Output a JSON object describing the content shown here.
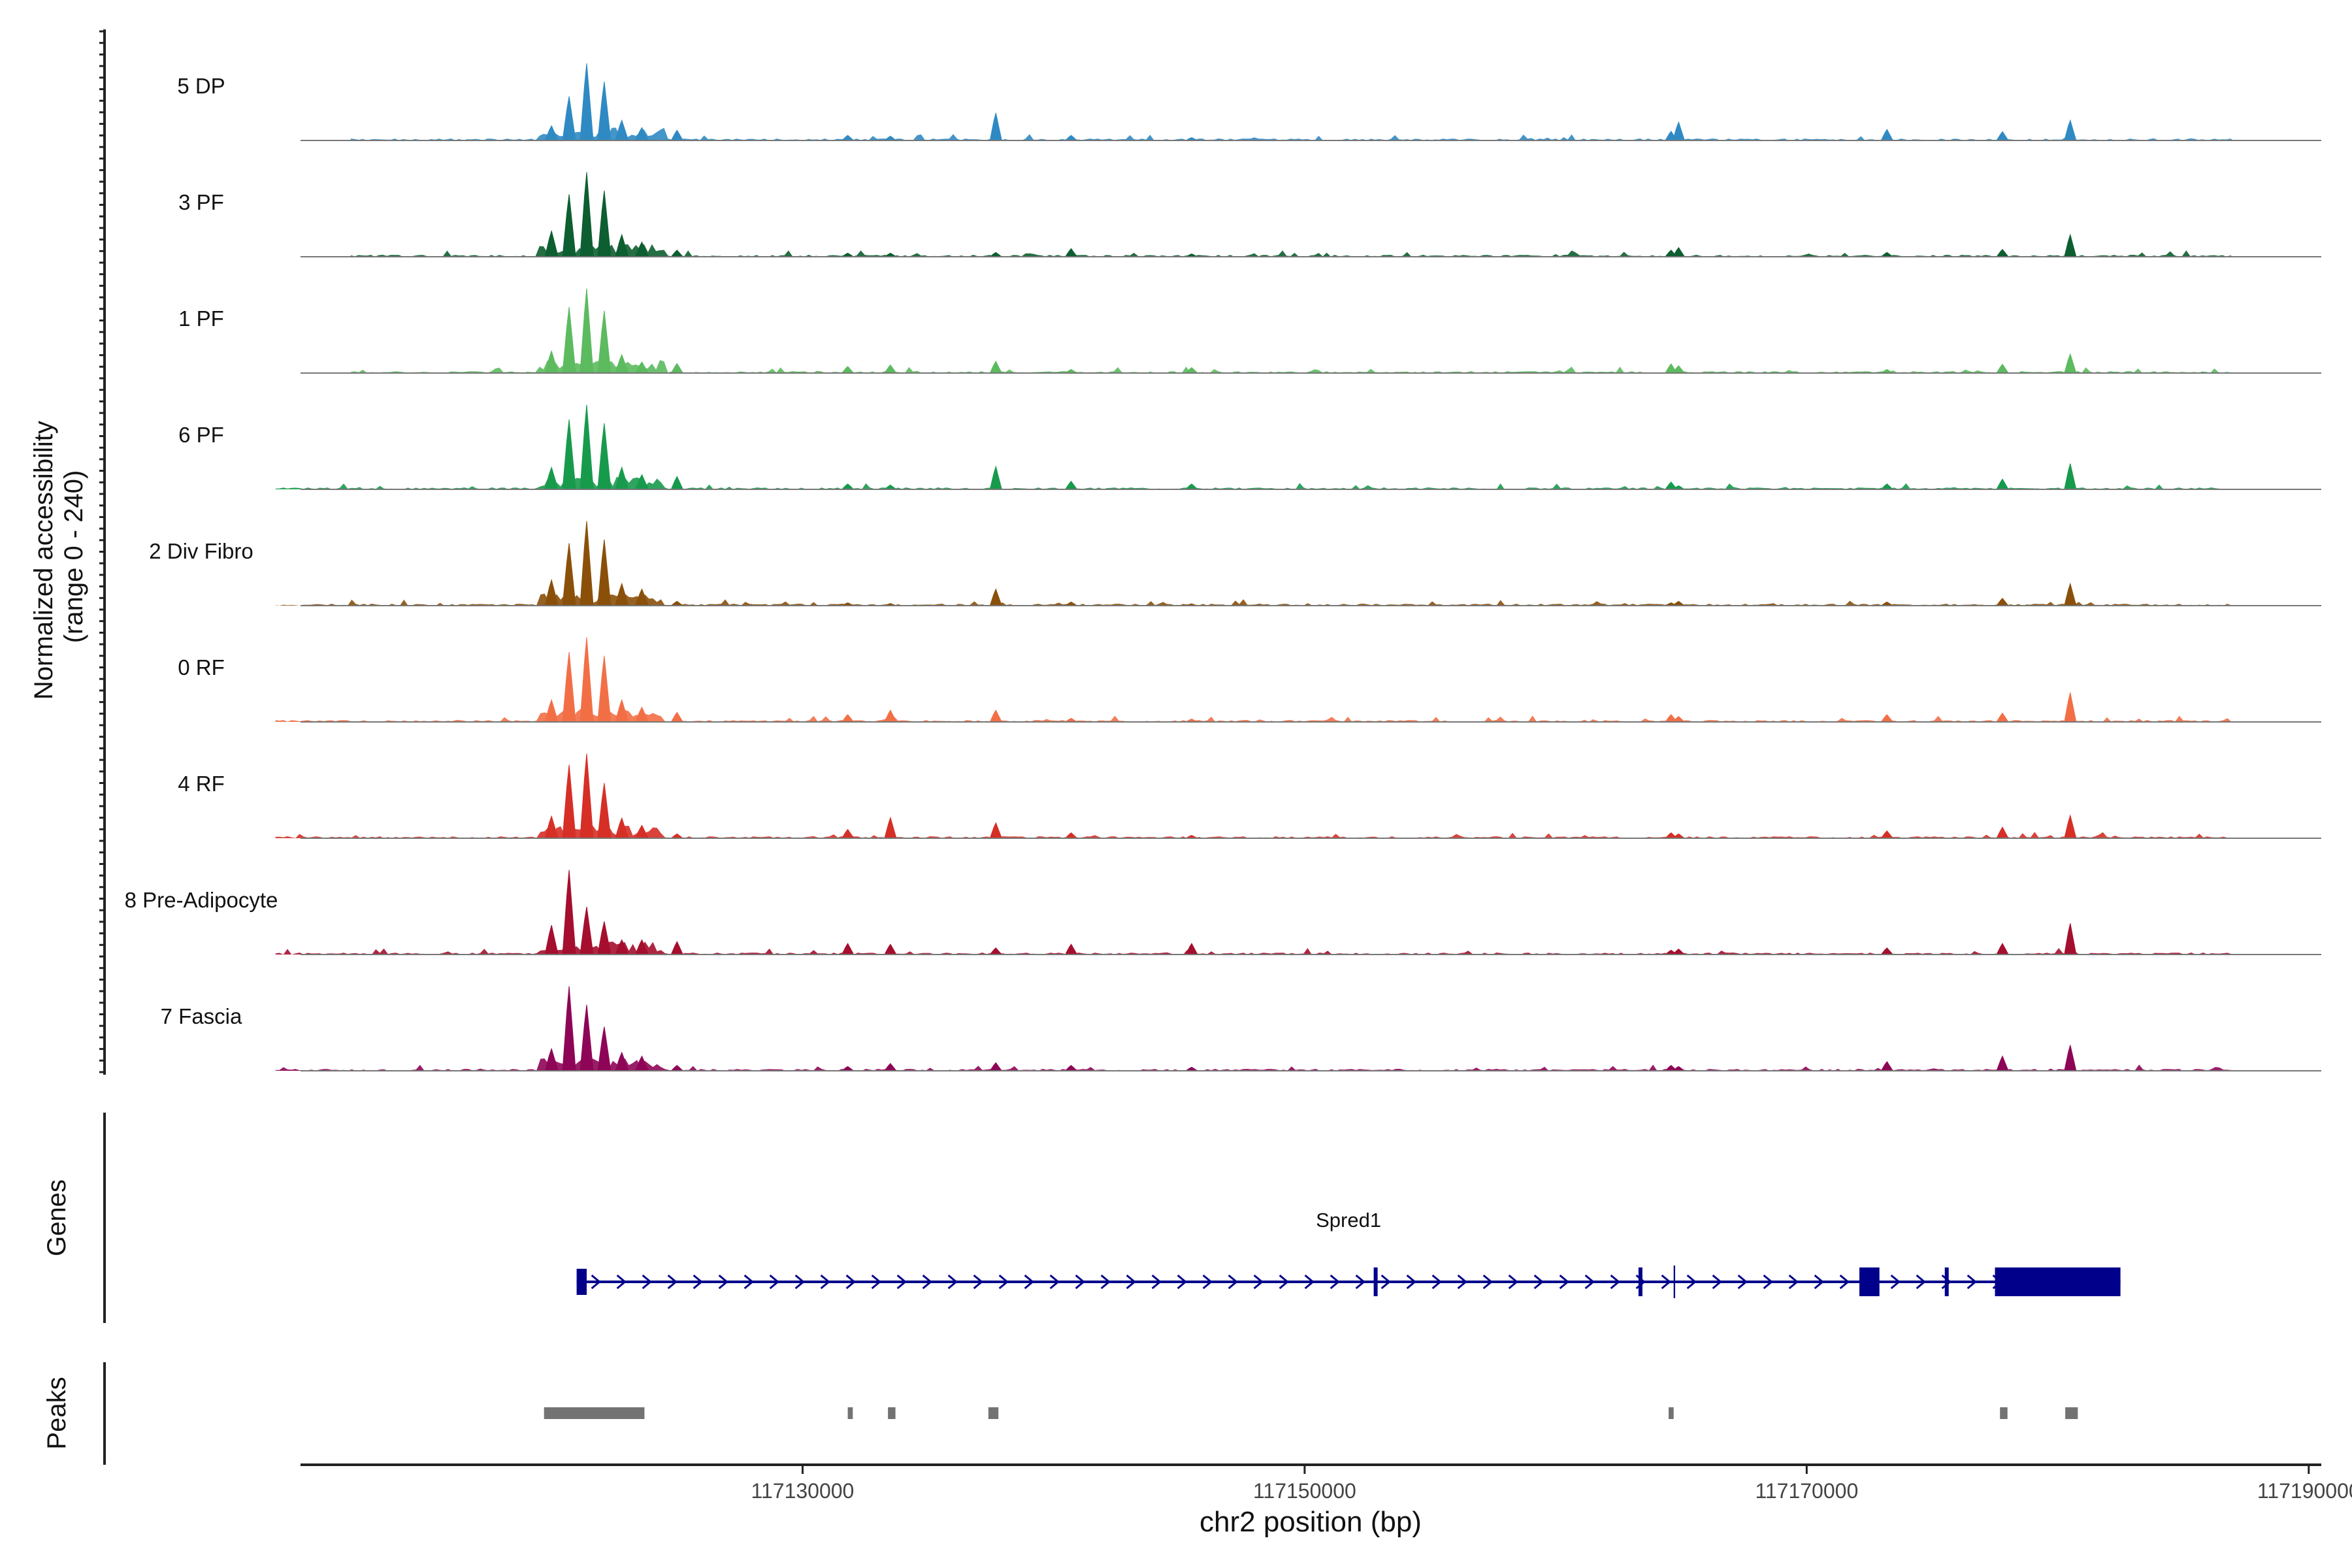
{
  "chart_data": [
    {
      "type": "area",
      "panel": "coverage",
      "ylabel_line1": "Normalized accessibility",
      "ylabel_line2": "(range 0 - 240)",
      "ylim": [
        0,
        240
      ],
      "x": [
        117120000,
        117120700,
        117121400,
        117122100,
        117122800,
        117123600,
        117125000,
        117131800,
        117133500,
        117137700,
        117140700,
        117145500,
        117164600,
        117164900,
        117173200,
        117177800,
        117180500
      ],
      "xlim": [
        117110000,
        117190500
      ],
      "series": [
        {
          "name": "5 DP",
          "color": "#2f8ac4",
          "values": [
            40,
            120,
            210,
            160,
            55,
            35,
            28,
            14,
            12,
            75,
            14,
            8,
            25,
            50,
            30,
            24,
            55
          ]
        },
        {
          "name": "3 PF",
          "color": "#0d5e30",
          "values": [
            70,
            170,
            230,
            180,
            60,
            40,
            18,
            10,
            10,
            12,
            22,
            8,
            18,
            25,
            12,
            20,
            60
          ]
        },
        {
          "name": "1 PF",
          "color": "#5cba5f",
          "values": [
            60,
            180,
            230,
            170,
            50,
            30,
            26,
            18,
            22,
            32,
            10,
            15,
            25,
            20,
            10,
            24,
            52
          ]
        },
        {
          "name": "6 PF",
          "color": "#189a4c",
          "values": [
            60,
            190,
            230,
            180,
            60,
            40,
            35,
            15,
            12,
            62,
            22,
            15,
            20,
            10,
            15,
            28,
            70
          ]
        },
        {
          "name": "2 Div Fibro",
          "color": "#8a500a",
          "values": [
            70,
            170,
            230,
            180,
            60,
            45,
            12,
            8,
            6,
            45,
            10,
            5,
            8,
            12,
            10,
            20,
            60
          ]
        },
        {
          "name": "0 RF",
          "color": "#f26f46",
          "values": [
            60,
            190,
            230,
            180,
            60,
            40,
            26,
            20,
            32,
            32,
            10,
            8,
            20,
            15,
            20,
            24,
            80
          ]
        },
        {
          "name": "4 RF",
          "color": "#d62f26",
          "values": [
            60,
            200,
            230,
            150,
            55,
            35,
            12,
            24,
            56,
            42,
            15,
            8,
            15,
            12,
            20,
            30,
            62
          ]
        },
        {
          "name": "8 Pre-Adipocyte",
          "color": "#a50e2e",
          "values": [
            80,
            230,
            130,
            90,
            40,
            40,
            35,
            30,
            28,
            18,
            28,
            30,
            12,
            15,
            18,
            30,
            85
          ]
        },
        {
          "name": "7 Fascia",
          "color": "#8e0557",
          "values": [
            60,
            230,
            180,
            120,
            50,
            40,
            15,
            12,
            20,
            22,
            15,
            10,
            15,
            12,
            25,
            40,
            70
          ]
        }
      ],
      "track_labels": [
        "5 DP",
        "3 PF",
        "1 PF",
        "6 PF",
        "2 Div Fibro",
        "0 RF",
        "4 RF",
        "8 Pre-Adipocyte",
        "7 Fascia"
      ]
    },
    {
      "type": "gene_track",
      "panel": "genes",
      "ylabel": "Genes",
      "gene_name": "Spred1",
      "color": "#00008b",
      "strand": "+",
      "start": 117121000,
      "end": 117182500,
      "exons": [
        {
          "start": 117121000,
          "end": 117121400,
          "kind": "utr"
        },
        {
          "start": 117152750,
          "end": 117152900,
          "kind": "coding"
        },
        {
          "start": 117163300,
          "end": 117163450,
          "kind": "coding"
        },
        {
          "start": 117164700,
          "end": 117164760,
          "kind": "thin"
        },
        {
          "start": 117172100,
          "end": 117172900,
          "kind": "coding"
        },
        {
          "start": 117175500,
          "end": 117175620,
          "kind": "coding"
        },
        {
          "start": 117177500,
          "end": 117182500,
          "kind": "coding"
        }
      ]
    },
    {
      "type": "interval_track",
      "panel": "peaks",
      "ylabel": "Peaks",
      "color": "#737373",
      "intervals": [
        [
          117119700,
          117123700
        ],
        [
          117131800,
          117132000
        ],
        [
          117133400,
          117133700
        ],
        [
          117137400,
          117137800
        ],
        [
          117164500,
          117164700
        ],
        [
          117177700,
          117178000
        ],
        [
          117180300,
          117180800
        ]
      ]
    },
    {
      "type": "axis",
      "panel": "x-axis",
      "xlabel": "chr2 position (bp)",
      "ticks": [
        117130000,
        117150000,
        117170000,
        117190000
      ],
      "tick_labels": [
        "117130000",
        "117150000",
        "117170000",
        "117190000"
      ]
    }
  ]
}
